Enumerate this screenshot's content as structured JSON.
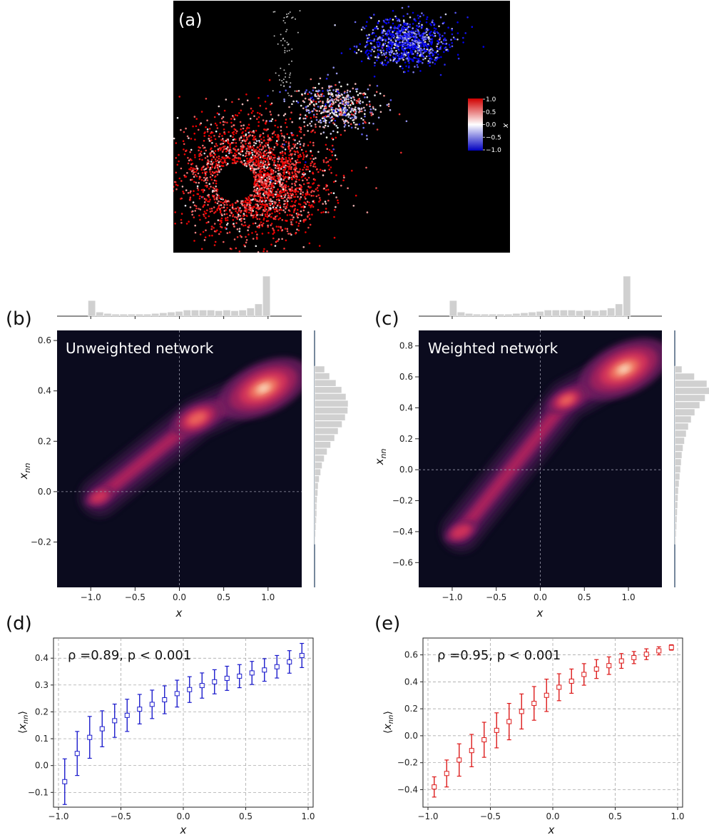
{
  "chart_data": [
    {
      "panel": "(a)",
      "type": "scatter",
      "background": "#000000",
      "colorbar": {
        "label": "x",
        "ticks": [
          "1.0",
          "0.5",
          "0.0",
          "−0.5",
          "−1.0"
        ],
        "colors": [
          "#e01010",
          "#ffffff",
          "#1010e0"
        ],
        "range": [
          -1.0,
          1.0
        ]
      },
      "clusters": [
        {
          "cx": 355,
          "cy": 250,
          "rx": 88,
          "ry": 72,
          "value": 0.85,
          "count": 2600
        },
        {
          "cx": 570,
          "cy": 60,
          "rx": 55,
          "ry": 30,
          "value": -0.85,
          "count": 900
        },
        {
          "cx": 470,
          "cy": 150,
          "rx": 55,
          "ry": 30,
          "value": 0.0,
          "count": 500
        }
      ]
    },
    {
      "panel": "(b)",
      "type": "heatmap",
      "annotation": "Unweighted network",
      "xlabel": "x",
      "ylabel": "x_nn",
      "xticks": [
        "−1.0",
        "−0.5",
        "0.0",
        "0.5",
        "1.0"
      ],
      "xtick_values": [
        -1.0,
        -0.5,
        0.0,
        0.5,
        1.0
      ],
      "yticks": [
        "−0.2",
        "0.0",
        "0.2",
        "0.4",
        "0.6"
      ],
      "ytick_values": [
        -0.2,
        0.0,
        0.2,
        0.4,
        0.6
      ],
      "xlim": [
        -1.38,
        1.38
      ],
      "ylim": [
        -0.38,
        0.64
      ],
      "grid": "dashed lines at x=0 and y=0",
      "density_peaks": [
        {
          "x": 0.95,
          "y": 0.41,
          "weight": 1.0
        },
        {
          "x": 0.2,
          "y": 0.29,
          "weight": 0.5
        },
        {
          "x": -0.9,
          "y": -0.02,
          "weight": 0.2
        }
      ],
      "hist_top": [
        0.23,
        0.06,
        0.04,
        0.03,
        0.03,
        0.03,
        0.03,
        0.03,
        0.04,
        0.05,
        0.06,
        0.07,
        0.09,
        0.09,
        0.09,
        0.09,
        0.08,
        0.09,
        0.08,
        0.09,
        0.12,
        0.18,
        0.59
      ],
      "hist_right": [
        0.02,
        0.03,
        0.04,
        0.05,
        0.06,
        0.06,
        0.07,
        0.09,
        0.1,
        0.13,
        0.17,
        0.21,
        0.27,
        0.35,
        0.45,
        0.56,
        0.66,
        0.77,
        0.86,
        0.93,
        0.94,
        0.88,
        0.76,
        0.6,
        0.42,
        0.28
      ]
    },
    {
      "panel": "(c)",
      "type": "heatmap",
      "annotation": "Weighted network",
      "xlabel": "x",
      "ylabel": "x_nn",
      "xticks": [
        "−1.0",
        "−0.5",
        "0.0",
        "0.5",
        "1.0"
      ],
      "xtick_values": [
        -1.0,
        -0.5,
        0.0,
        0.5,
        1.0
      ],
      "yticks": [
        "−0.6",
        "−0.4",
        "−0.2",
        "0.0",
        "0.2",
        "0.4",
        "0.6",
        "0.8"
      ],
      "ytick_values": [
        -0.6,
        -0.4,
        -0.2,
        0.0,
        0.2,
        0.4,
        0.6,
        0.8
      ],
      "xlim": [
        -1.38,
        1.38
      ],
      "ylim": [
        -0.76,
        0.9
      ],
      "grid": "dashed lines at x=0 and y=0",
      "density_peaks": [
        {
          "x": 0.95,
          "y": 0.65,
          "weight": 1.0
        },
        {
          "x": 0.3,
          "y": 0.45,
          "weight": 0.35
        },
        {
          "x": -0.9,
          "y": -0.4,
          "weight": 0.25
        }
      ],
      "hist_top": [
        0.23,
        0.06,
        0.04,
        0.03,
        0.03,
        0.03,
        0.03,
        0.03,
        0.04,
        0.05,
        0.06,
        0.07,
        0.09,
        0.09,
        0.09,
        0.09,
        0.08,
        0.09,
        0.08,
        0.09,
        0.12,
        0.18,
        0.59
      ],
      "hist_right": [
        0.03,
        0.04,
        0.05,
        0.06,
        0.07,
        0.08,
        0.09,
        0.1,
        0.12,
        0.14,
        0.16,
        0.18,
        0.2,
        0.23,
        0.27,
        0.32,
        0.38,
        0.46,
        0.56,
        0.7,
        0.85,
        1.0,
        0.9,
        0.55,
        0.2
      ]
    },
    {
      "panel": "(d)",
      "type": "scatter",
      "annotation": "ρ =0.89, p < 0.001",
      "xlabel": "x",
      "ylabel": "⟨x_nn⟩",
      "color": "#1a1acc",
      "xticks": [
        "−1.0",
        "−0.5",
        "0.0",
        "0.5",
        "1.0"
      ],
      "xtick_values": [
        -1.0,
        -0.5,
        0.0,
        0.5,
        1.0
      ],
      "yticks": [
        "−0.1",
        "0.0",
        "0.1",
        "0.2",
        "0.3",
        "0.4"
      ],
      "ytick_values": [
        -0.1,
        0.0,
        0.1,
        0.2,
        0.3,
        0.4
      ],
      "xlim": [
        -1.04,
        1.04
      ],
      "ylim": [
        -0.155,
        0.475
      ],
      "grid": true,
      "x": [
        -0.95,
        -0.85,
        -0.75,
        -0.65,
        -0.55,
        -0.45,
        -0.35,
        -0.25,
        -0.15,
        -0.05,
        0.05,
        0.15,
        0.25,
        0.35,
        0.45,
        0.55,
        0.65,
        0.75,
        0.85,
        0.95
      ],
      "y": [
        -0.06,
        0.045,
        0.105,
        0.137,
        0.167,
        0.187,
        0.21,
        0.228,
        0.245,
        0.268,
        0.283,
        0.298,
        0.312,
        0.325,
        0.333,
        0.345,
        0.356,
        0.368,
        0.386,
        0.41
      ],
      "err": [
        0.085,
        0.082,
        0.078,
        0.067,
        0.062,
        0.06,
        0.055,
        0.053,
        0.052,
        0.05,
        0.048,
        0.047,
        0.045,
        0.045,
        0.043,
        0.043,
        0.042,
        0.042,
        0.042,
        0.045
      ]
    },
    {
      "panel": "(e)",
      "type": "scatter",
      "annotation": "ρ =0.95, p < 0.001",
      "xlabel": "x",
      "ylabel": "⟨x_nn⟩",
      "color": "#dd1a1a",
      "xticks": [
        "−1.0",
        "−0.5",
        "0.0",
        "0.5",
        "1.0"
      ],
      "xtick_values": [
        -1.0,
        -0.5,
        0.0,
        0.5,
        1.0
      ],
      "yticks": [
        "−0.4",
        "−0.2",
        "0.0",
        "0.2",
        "0.4",
        "0.6"
      ],
      "ytick_values": [
        -0.4,
        -0.2,
        0.0,
        0.2,
        0.4,
        0.6
      ],
      "xlim": [
        -1.04,
        1.04
      ],
      "ylim": [
        -0.53,
        0.725
      ],
      "grid": true,
      "x": [
        -0.95,
        -0.85,
        -0.75,
        -0.65,
        -0.55,
        -0.45,
        -0.35,
        -0.25,
        -0.15,
        -0.05,
        0.05,
        0.15,
        0.25,
        0.35,
        0.45,
        0.55,
        0.65,
        0.75,
        0.85,
        0.95
      ],
      "y": [
        -0.38,
        -0.28,
        -0.18,
        -0.11,
        -0.03,
        0.04,
        0.105,
        0.18,
        0.24,
        0.3,
        0.36,
        0.405,
        0.455,
        0.495,
        0.52,
        0.555,
        0.58,
        0.605,
        0.63,
        0.655
      ],
      "err": [
        0.075,
        0.1,
        0.12,
        0.12,
        0.13,
        0.13,
        0.135,
        0.13,
        0.125,
        0.12,
        0.1,
        0.09,
        0.08,
        0.07,
        0.065,
        0.055,
        0.045,
        0.04,
        0.03,
        0.02
      ]
    }
  ]
}
